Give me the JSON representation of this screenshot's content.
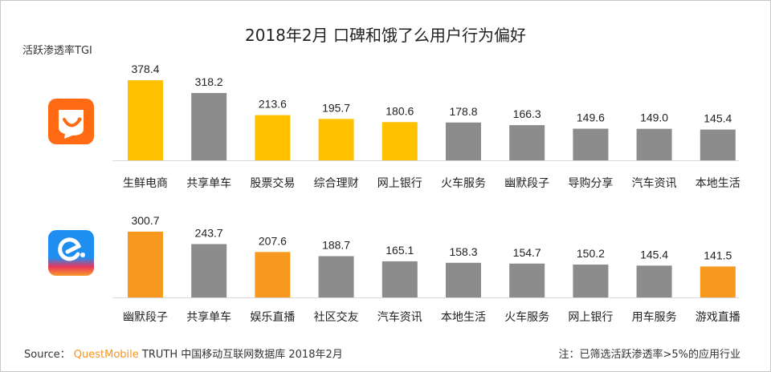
{
  "title": "2018年2月 口碑和饿了么用户行为偏好",
  "y_label": "活跃渗透率TGI",
  "source_prefix": "Source：",
  "source_brand": "QuestMobile",
  "source_rest": "TRUTH 中国移动互联网数据库 2018年2月",
  "note": "注：已筛选活跃渗透率>5%的应用行业",
  "colors": {
    "yellow": "#FFC000",
    "gray": "#8C8C8C",
    "orange": "#F7991E"
  },
  "chart_data": [
    {
      "type": "bar",
      "name": "口碑",
      "ylabel": "活跃渗透率TGI",
      "categories": [
        "生鲜电商",
        "共享单车",
        "股票交易",
        "综合理财",
        "网上银行",
        "火车服务",
        "幽默段子",
        "导购分享",
        "汽车资讯",
        "本地生活"
      ],
      "values": [
        378.4,
        318.2,
        213.6,
        195.7,
        180.6,
        178.8,
        166.3,
        149.6,
        149.0,
        145.4
      ],
      "value_labels": [
        "378.4",
        "318.2",
        "213.6",
        "195.7",
        "180.6",
        "178.8",
        "166.3",
        "149.6",
        "149.0",
        "145.4"
      ],
      "highlight": [
        true,
        false,
        true,
        true,
        true,
        false,
        false,
        false,
        false,
        false
      ]
    },
    {
      "type": "bar",
      "name": "饿了么",
      "ylabel": "活跃渗透率TGI",
      "categories": [
        "幽默段子",
        "共享单车",
        "娱乐直播",
        "社区交友",
        "汽车资讯",
        "本地生活",
        "火车服务",
        "网上银行",
        "用车服务",
        "游戏直播"
      ],
      "values": [
        300.7,
        243.7,
        207.6,
        188.7,
        165.1,
        158.3,
        154.7,
        150.2,
        145.4,
        141.5
      ],
      "value_labels": [
        "300.7",
        "243.7",
        "207.6",
        "188.7",
        "165.1",
        "158.3",
        "154.7",
        "150.2",
        "145.4",
        "141.5"
      ],
      "highlight": [
        true,
        false,
        true,
        false,
        false,
        false,
        false,
        false,
        false,
        true
      ]
    }
  ]
}
